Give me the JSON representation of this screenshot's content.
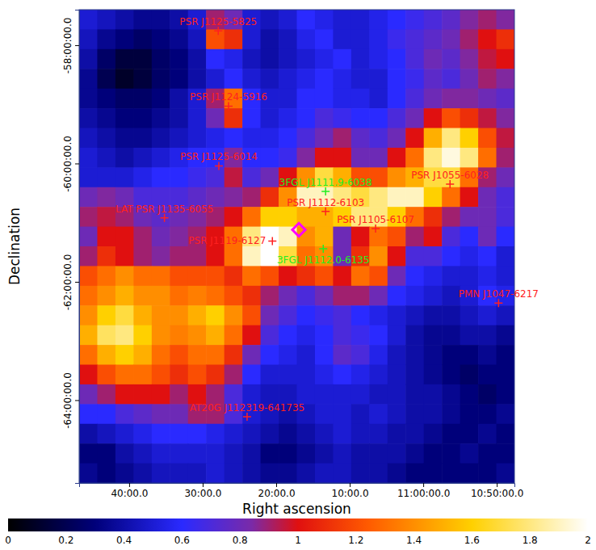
{
  "chart_data": {
    "type": "heatmap",
    "xlabel": "Right ascension",
    "ylabel": "Declination",
    "xlim": [
      176.7,
      161.9
    ],
    "xticks": [
      {
        "value": 175,
        "label": "40:00.0"
      },
      {
        "value": 172.5,
        "label": "30:00.0"
      },
      {
        "value": 170,
        "label": "20:00.0"
      },
      {
        "value": 167.5,
        "label": "10:00.0"
      },
      {
        "value": 165,
        "label": "11:00:00.0"
      },
      {
        "value": 162.5,
        "label": "10:50:00.0"
      }
    ],
    "ylim": [
      -65.4,
      -57.4
    ],
    "yticks": [
      {
        "value": -58,
        "label": "-58:00:00.0"
      },
      {
        "value": -60,
        "label": "-60:00:00.0"
      },
      {
        "value": -62,
        "label": "-62:00:00.0"
      },
      {
        "value": -64,
        "label": "-64:00:00.0"
      }
    ],
    "cells": [
      [
        0.5,
        0.45,
        0.4,
        0.35,
        0.35,
        0.4,
        0.5,
        0.9,
        0.8,
        0.5,
        0.45,
        0.5,
        0.6,
        0.55,
        0.5,
        0.5,
        0.55,
        0.6,
        0.65,
        0.7,
        0.75,
        0.85,
        0.9,
        0.85
      ],
      [
        0.45,
        0.35,
        0.3,
        0.25,
        0.3,
        0.35,
        0.45,
        1.2,
        1.1,
        0.5,
        0.4,
        0.45,
        0.55,
        0.6,
        0.5,
        0.5,
        0.55,
        0.65,
        0.7,
        0.75,
        0.8,
        0.9,
        1.0,
        1.1
      ],
      [
        0.4,
        0.25,
        0.15,
        0.15,
        0.25,
        0.3,
        0.4,
        0.6,
        0.55,
        0.45,
        0.4,
        0.45,
        0.5,
        0.55,
        0.6,
        0.5,
        0.55,
        0.6,
        0.7,
        0.8,
        0.75,
        0.85,
        0.95,
        1.0
      ],
      [
        0.35,
        0.2,
        0.1,
        0.15,
        0.25,
        0.3,
        0.4,
        0.5,
        0.6,
        0.5,
        0.45,
        0.5,
        0.55,
        0.6,
        0.55,
        0.5,
        0.5,
        0.6,
        0.65,
        0.75,
        0.7,
        0.8,
        0.9,
        0.85
      ],
      [
        0.35,
        0.3,
        0.25,
        0.25,
        0.3,
        0.4,
        0.5,
        0.9,
        1.3,
        0.6,
        0.5,
        0.5,
        0.6,
        0.6,
        0.55,
        0.55,
        0.5,
        0.6,
        0.7,
        0.8,
        0.85,
        0.85,
        0.8,
        0.75
      ],
      [
        0.4,
        0.35,
        0.3,
        0.3,
        0.35,
        0.4,
        0.5,
        0.8,
        1.1,
        0.6,
        0.5,
        0.55,
        0.6,
        0.7,
        0.65,
        0.6,
        0.6,
        0.7,
        0.8,
        1.0,
        1.2,
        1.1,
        0.95,
        0.85
      ],
      [
        0.45,
        0.4,
        0.35,
        0.35,
        0.4,
        0.45,
        0.5,
        0.55,
        0.6,
        0.55,
        0.55,
        0.6,
        0.7,
        0.8,
        0.9,
        0.75,
        0.7,
        0.8,
        1.0,
        1.5,
        1.8,
        1.6,
        1.2,
        0.95
      ],
      [
        0.5,
        0.45,
        0.4,
        0.45,
        0.5,
        0.55,
        0.6,
        0.6,
        0.85,
        0.6,
        0.6,
        0.65,
        0.85,
        1.0,
        1.0,
        0.8,
        0.8,
        1.0,
        1.3,
        1.8,
        1.95,
        1.8,
        1.3,
        0.9
      ],
      [
        0.5,
        0.5,
        0.5,
        0.55,
        0.6,
        0.6,
        0.65,
        0.7,
        0.95,
        0.7,
        0.8,
        1.0,
        1.4,
        1.7,
        1.5,
        1.2,
        1.2,
        1.4,
        1.5,
        1.7,
        1.7,
        1.3,
        0.9,
        0.8
      ],
      [
        0.8,
        0.85,
        0.8,
        0.7,
        0.7,
        0.7,
        0.75,
        0.8,
        0.85,
        0.9,
        1.1,
        1.4,
        1.9,
        1.9,
        1.8,
        1.7,
        1.8,
        1.9,
        1.9,
        1.6,
        1.3,
        1.0,
        0.8,
        0.7
      ],
      [
        0.9,
        0.95,
        0.9,
        0.8,
        0.75,
        0.8,
        0.85,
        0.9,
        1.0,
        1.3,
        1.6,
        1.6,
        1.5,
        1.5,
        1.6,
        1.8,
        1.8,
        1.6,
        1.3,
        1.1,
        0.9,
        0.8,
        0.8,
        0.7
      ],
      [
        0.8,
        1.0,
        1.0,
        0.9,
        0.8,
        0.85,
        0.9,
        1.0,
        1.3,
        1.8,
        2.0,
        1.9,
        1.4,
        1.5,
        0.8,
        1.0,
        1.3,
        1.2,
        0.9,
        1.0,
        0.7,
        0.6,
        0.8,
        0.6
      ],
      [
        0.9,
        1.1,
        1.0,
        0.9,
        0.85,
        0.9,
        0.9,
        1.0,
        1.3,
        1.9,
        2.0,
        1.7,
        1.3,
        1.4,
        0.8,
        1.1,
        1.4,
        1.0,
        0.7,
        0.7,
        0.6,
        0.55,
        0.6,
        0.5
      ],
      [
        1.2,
        1.3,
        1.4,
        1.3,
        1.3,
        1.2,
        1.2,
        1.2,
        1.1,
        1.3,
        1.2,
        1.0,
        1.1,
        1.2,
        1.0,
        1.3,
        1.2,
        0.8,
        0.6,
        0.55,
        0.5,
        0.5,
        0.55,
        0.5
      ],
      [
        1.3,
        1.4,
        1.5,
        1.4,
        1.4,
        1.3,
        1.35,
        1.3,
        1.2,
        1.1,
        0.9,
        0.8,
        0.7,
        0.8,
        0.9,
        0.9,
        0.8,
        0.6,
        0.55,
        0.5,
        0.45,
        0.5,
        0.6,
        0.55
      ],
      [
        1.4,
        1.6,
        1.7,
        1.5,
        1.4,
        1.4,
        1.5,
        1.6,
        1.4,
        1.2,
        0.8,
        0.7,
        0.6,
        0.65,
        0.7,
        0.6,
        0.55,
        0.5,
        0.45,
        0.4,
        0.4,
        0.45,
        0.5,
        0.45
      ],
      [
        1.5,
        1.75,
        1.8,
        1.6,
        1.4,
        1.35,
        1.4,
        1.5,
        1.3,
        1.0,
        0.7,
        0.6,
        0.55,
        0.6,
        0.7,
        0.65,
        0.6,
        0.5,
        0.4,
        0.35,
        0.35,
        0.4,
        0.4,
        0.35
      ],
      [
        1.3,
        1.5,
        1.6,
        1.5,
        1.3,
        1.2,
        1.3,
        1.3,
        1.1,
        0.8,
        0.6,
        0.55,
        0.5,
        0.6,
        0.75,
        0.7,
        0.55,
        0.45,
        0.4,
        0.35,
        0.3,
        0.3,
        0.35,
        0.3
      ],
      [
        1.0,
        1.2,
        1.3,
        1.3,
        1.2,
        1.1,
        1.2,
        1.1,
        0.9,
        0.6,
        0.5,
        0.5,
        0.5,
        0.55,
        0.6,
        0.55,
        0.5,
        0.45,
        0.4,
        0.35,
        0.3,
        0.25,
        0.3,
        0.3
      ],
      [
        0.8,
        0.9,
        1.0,
        1.0,
        1.0,
        0.9,
        1.0,
        0.9,
        0.7,
        0.5,
        0.45,
        0.45,
        0.5,
        0.5,
        0.5,
        0.5,
        0.45,
        0.45,
        0.4,
        0.4,
        0.35,
        0.3,
        0.25,
        0.3
      ],
      [
        0.6,
        0.6,
        0.7,
        0.75,
        0.8,
        0.8,
        0.9,
        0.9,
        0.7,
        0.5,
        0.45,
        0.4,
        0.45,
        0.5,
        0.5,
        0.45,
        0.5,
        0.45,
        0.4,
        0.4,
        0.35,
        0.3,
        0.3,
        0.35
      ],
      [
        0.4,
        0.45,
        0.5,
        0.55,
        0.6,
        0.6,
        0.6,
        0.55,
        0.5,
        0.45,
        0.4,
        0.35,
        0.4,
        0.45,
        0.5,
        0.45,
        0.45,
        0.4,
        0.4,
        0.35,
        0.3,
        0.3,
        0.35,
        0.3
      ],
      [
        0.3,
        0.3,
        0.4,
        0.45,
        0.5,
        0.5,
        0.5,
        0.5,
        0.45,
        0.4,
        0.3,
        0.3,
        0.35,
        0.4,
        0.45,
        0.4,
        0.4,
        0.4,
        0.35,
        0.3,
        0.3,
        0.35,
        0.3,
        0.3
      ],
      [
        0.35,
        0.3,
        0.35,
        0.4,
        0.45,
        0.45,
        0.45,
        0.5,
        0.45,
        0.4,
        0.35,
        0.35,
        0.4,
        0.45,
        0.45,
        0.4,
        0.4,
        0.35,
        0.3,
        0.3,
        0.3,
        0.3,
        0.3,
        0.35
      ]
    ],
    "color_range": [
      0,
      2
    ],
    "color_ticks": [
      0,
      0.2,
      0.4,
      0.6,
      0.8,
      1,
      1.2,
      1.4,
      1.6,
      1.8,
      2
    ],
    "sources": [
      {
        "name": "PSR J1125-5825",
        "ra": 171.97,
        "dec": -57.76,
        "color": "#ff2020"
      },
      {
        "name": "PSR J1124-5916",
        "ra": 171.62,
        "dec": -59.03,
        "color": "#ff2020"
      },
      {
        "name": "PSR J1125-6014",
        "ra": 171.95,
        "dec": -60.04,
        "color": "#ff2020"
      },
      {
        "name": "LAT PSR J1135-6055",
        "ra": 173.8,
        "dec": -60.92,
        "color": "#ff2020"
      },
      {
        "name": "3FGL J1111.9-6038",
        "ra": 168.32,
        "dec": -60.47,
        "color": "#22ee22"
      },
      {
        "name": "PSR J1112-6103",
        "ra": 168.32,
        "dec": -60.81,
        "color": "#ff2020"
      },
      {
        "name": "PSR J1105-6107",
        "ra": 166.62,
        "dec": -61.1,
        "color": "#ff2020"
      },
      {
        "name": "PSR J1119-6127",
        "ra": 170.13,
        "dec": -61.31,
        "color": "#ff2020"
      },
      {
        "name": "3FGL J1112.0-6135",
        "ra": 168.4,
        "dec": -61.44,
        "color": "#22ee22"
      },
      {
        "name": "PSR J1055-6028",
        "ra": 164.09,
        "dec": -60.35,
        "color": "#ff2020"
      },
      {
        "name": "PMN J1047-6217",
        "ra": 162.44,
        "dec": -62.36,
        "color": "#ff2020"
      },
      {
        "name": "AT20G J112319-641735",
        "ra": 170.99,
        "dec": -64.28,
        "color": "#ff2020"
      }
    ],
    "target": {
      "ra": 169.23,
      "dec": -61.12,
      "marker": "diamond",
      "color": "#ff00ff"
    }
  }
}
